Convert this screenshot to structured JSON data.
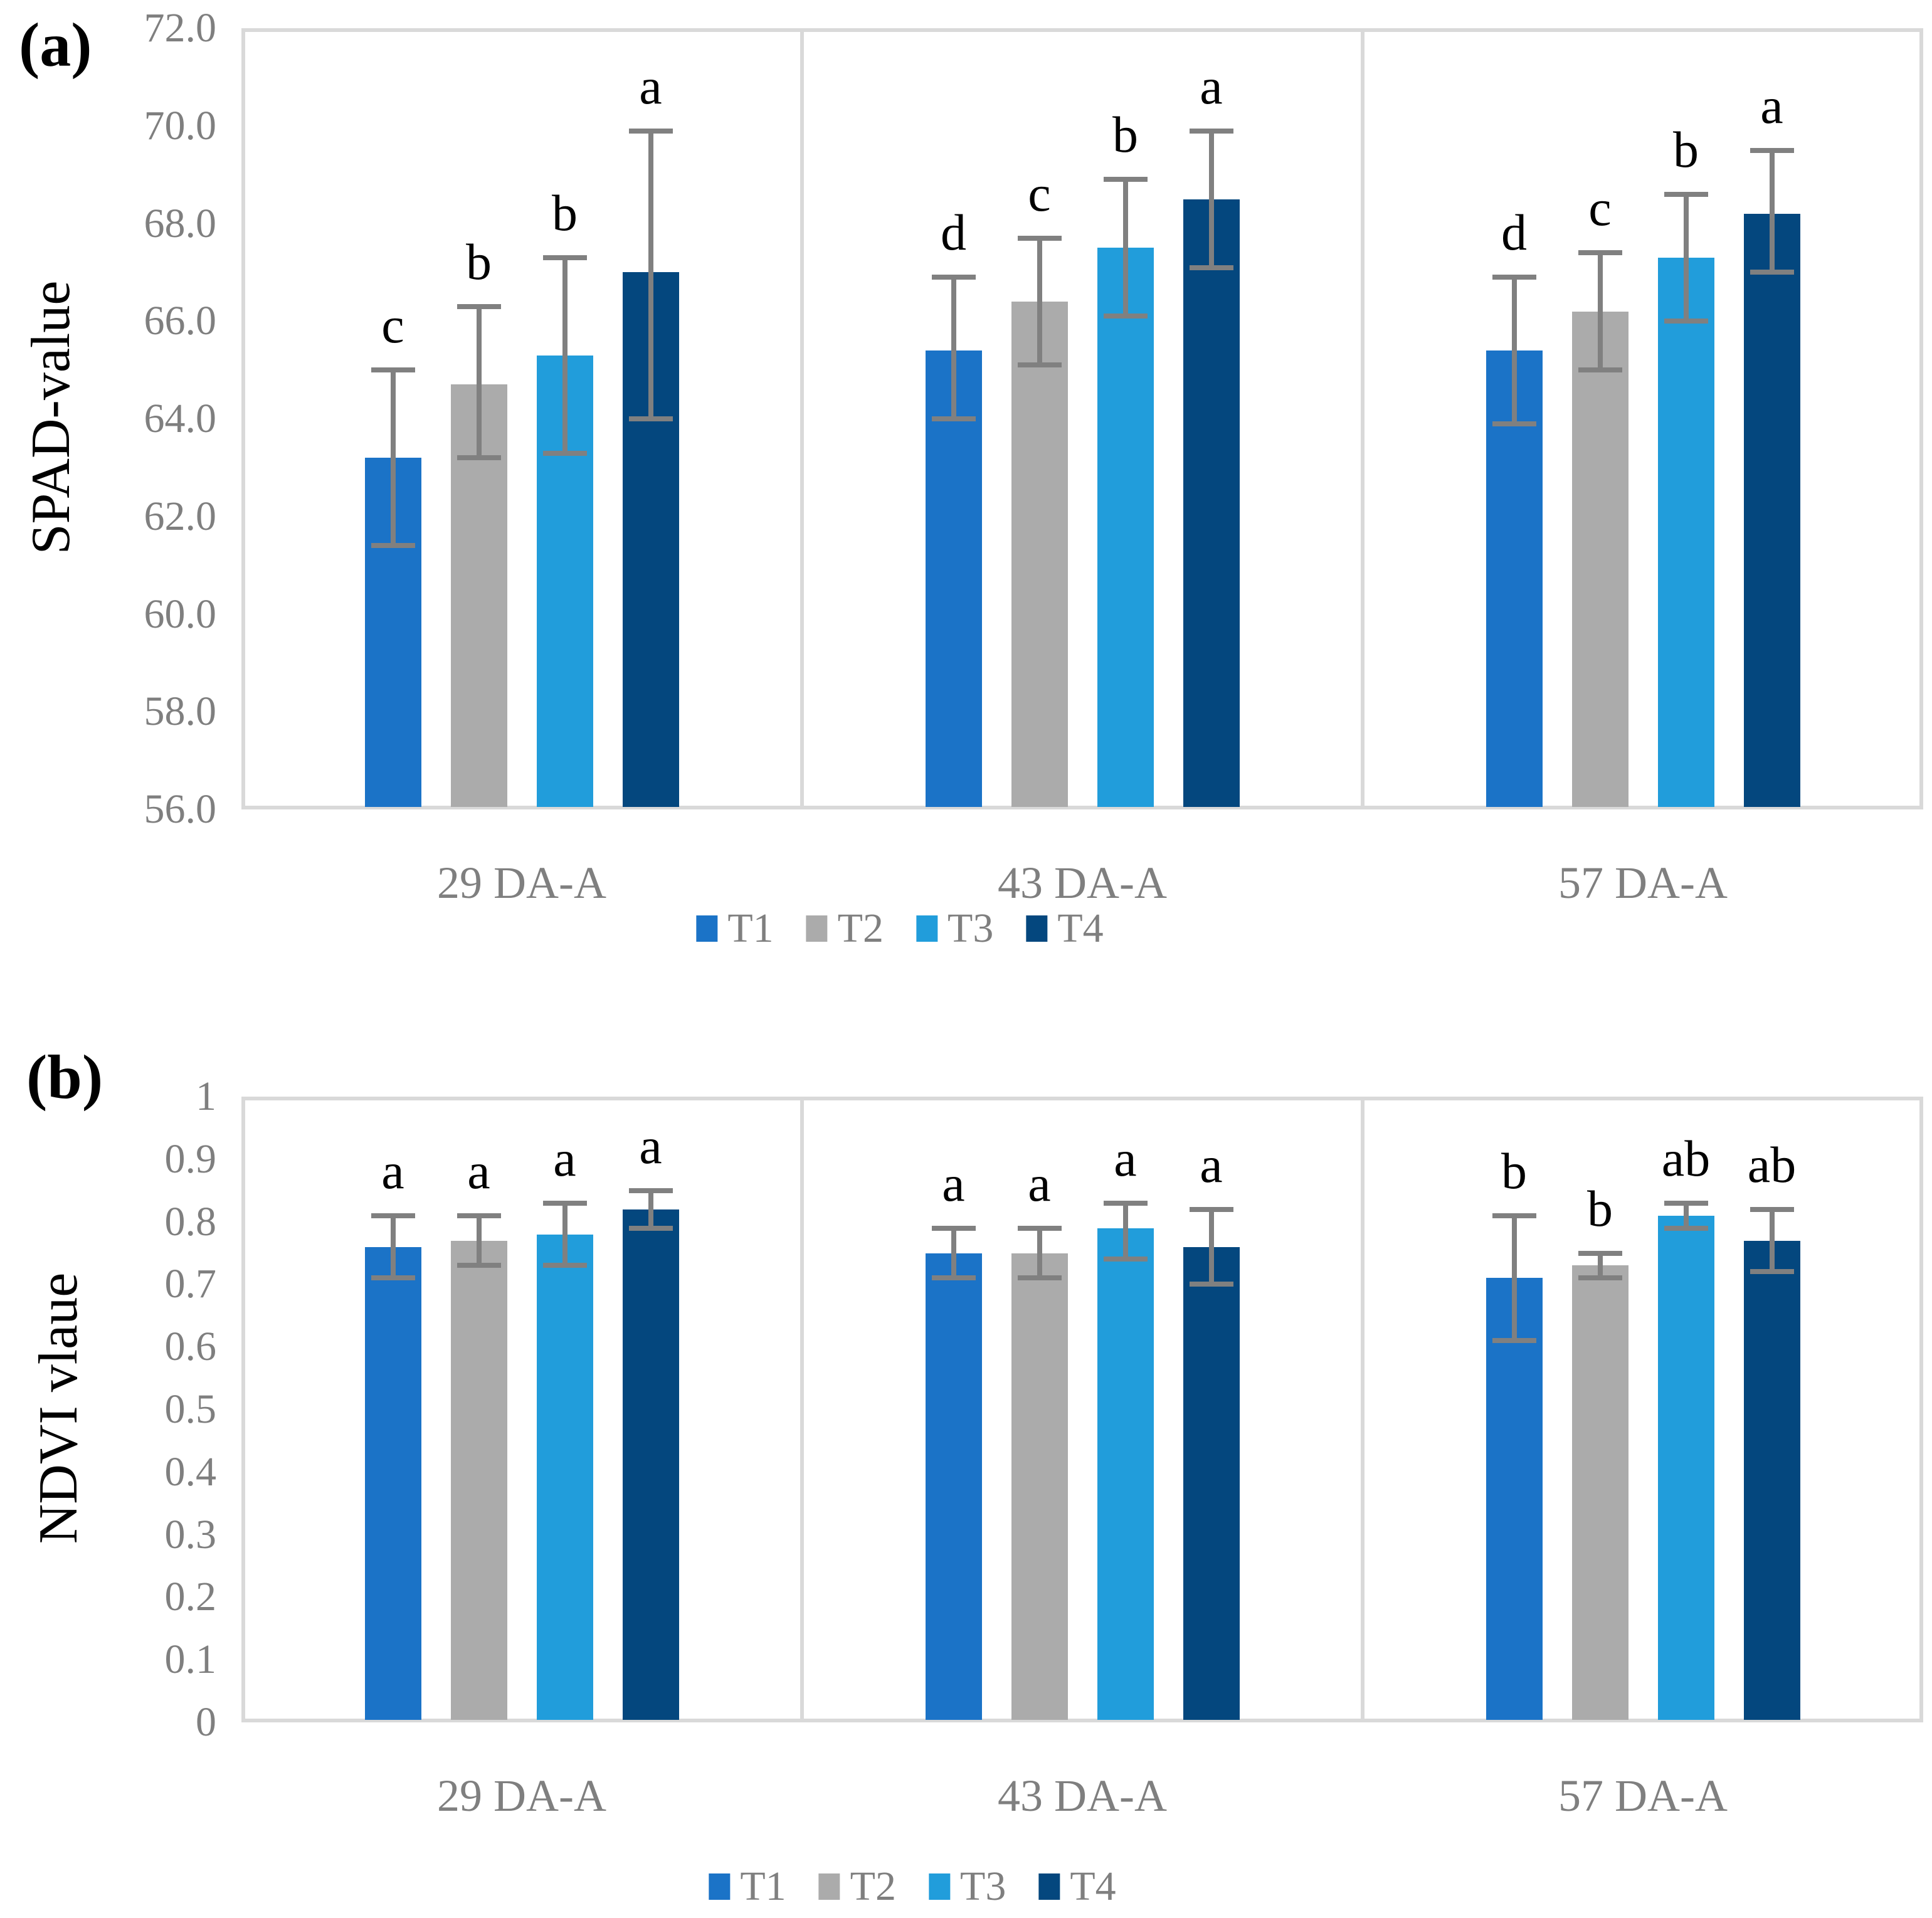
{
  "figure_colors": {
    "t1_blue": "#1B73C7",
    "t2_gray": "#ABABAB",
    "t3_light_blue": "#219DDB",
    "t4_dark_blue": "#04477E",
    "error_bar_gray": "#808080",
    "plot_border_gray": "#D9D9D9",
    "tick_text_gray": "#7F7F7F",
    "letter_black": "#000000"
  },
  "chart_data": [
    {
      "id": "panel-a",
      "type": "bar",
      "panel_label": "(a)",
      "title": "",
      "xlabel": "",
      "ylabel": "SPAD-value",
      "ylim": [
        56,
        72
      ],
      "ytick_step": 2,
      "ytick_labels": [
        "72.0",
        "70.0",
        "68.0",
        "66.0",
        "64.0",
        "62.0",
        "60.0",
        "58.0",
        "56.0"
      ],
      "grid": false,
      "legend_position": "bottom",
      "categories": [
        "29 DA-A",
        "43 DA-A",
        "57 DA-A"
      ],
      "series": [
        {
          "name": "T1",
          "color": "#1B73C7",
          "values": [
            63.2,
            65.4,
            65.4
          ],
          "error_low": [
            61.4,
            64.0,
            63.9
          ],
          "error_high": [
            65.0,
            66.9,
            66.9
          ],
          "letters": [
            "c",
            "d",
            "d"
          ]
        },
        {
          "name": "T2",
          "color": "#ABABAB",
          "values": [
            64.7,
            66.4,
            66.2
          ],
          "error_low": [
            63.2,
            65.1,
            65.0
          ],
          "error_high": [
            66.3,
            67.7,
            67.4
          ],
          "letters": [
            "b",
            "c",
            "c"
          ]
        },
        {
          "name": "T3",
          "color": "#219DDB",
          "values": [
            65.3,
            67.5,
            67.3
          ],
          "error_low": [
            63.3,
            66.1,
            66.0
          ],
          "error_high": [
            67.3,
            68.9,
            68.6
          ],
          "letters": [
            "b",
            "b",
            "b"
          ]
        },
        {
          "name": "T4",
          "color": "#04477E",
          "values": [
            67.0,
            68.5,
            68.2
          ],
          "error_low": [
            64.0,
            67.1,
            67.0
          ],
          "error_high": [
            69.9,
            69.9,
            69.5
          ],
          "letters": [
            "a",
            "a",
            "a"
          ]
        }
      ]
    },
    {
      "id": "panel-b",
      "type": "bar",
      "panel_label": "(b)",
      "title": "",
      "xlabel": "",
      "ylabel": "NDVI vlaue",
      "ylim": [
        0,
        1
      ],
      "ytick_step": 0.1,
      "ytick_labels": [
        "1",
        "0.9",
        "0.8",
        "0.7",
        "0.6",
        "0.5",
        "0.4",
        "0.3",
        "0.2",
        "0.1",
        "0"
      ],
      "grid": false,
      "legend_position": "bottom",
      "categories": [
        "29 DA-A",
        "43 DA-A",
        "57 DA-A"
      ],
      "series": [
        {
          "name": "T1",
          "color": "#1B73C7",
          "values": [
            0.76,
            0.75,
            0.71
          ],
          "error_low": [
            0.71,
            0.71,
            0.61
          ],
          "error_high": [
            0.81,
            0.79,
            0.81
          ],
          "letters": [
            "a",
            "a",
            "b"
          ]
        },
        {
          "name": "T2",
          "color": "#ABABAB",
          "values": [
            0.77,
            0.75,
            0.73
          ],
          "error_low": [
            0.73,
            0.71,
            0.71
          ],
          "error_high": [
            0.81,
            0.79,
            0.75
          ],
          "letters": [
            "a",
            "a",
            "b"
          ]
        },
        {
          "name": "T3",
          "color": "#219DDB",
          "values": [
            0.78,
            0.79,
            0.81
          ],
          "error_low": [
            0.73,
            0.74,
            0.79
          ],
          "error_high": [
            0.83,
            0.83,
            0.83
          ],
          "letters": [
            "a",
            "a",
            "ab"
          ]
        },
        {
          "name": "T4",
          "color": "#04477E",
          "values": [
            0.82,
            0.76,
            0.77
          ],
          "error_low": [
            0.79,
            0.7,
            0.72
          ],
          "error_high": [
            0.85,
            0.82,
            0.82
          ],
          "letters": [
            "a",
            "a",
            "ab"
          ]
        }
      ]
    }
  ]
}
